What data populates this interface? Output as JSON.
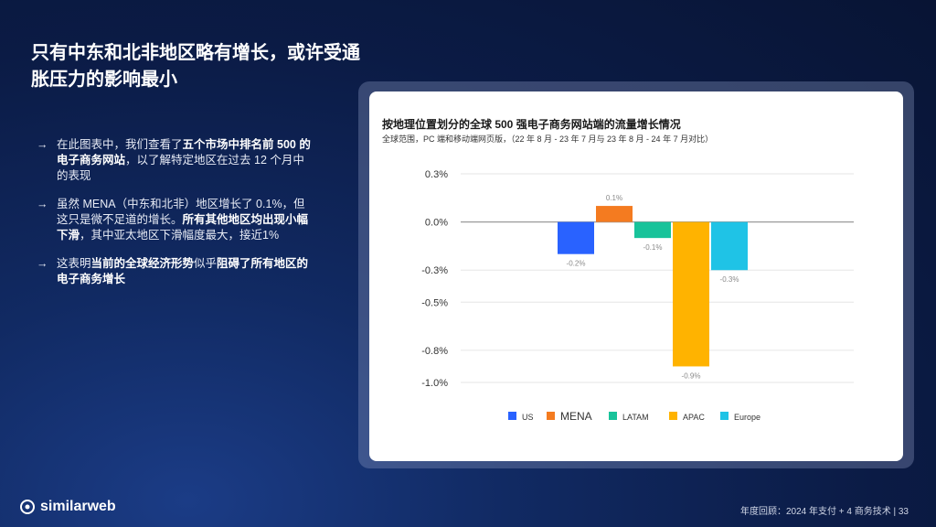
{
  "slide": {
    "title": "只有中东和北非地区略有增长，或许受通胀压力的影响最小",
    "footer_left": "similarweb",
    "footer_right": "年度回顾：2024 年支付 + 4 商务技术 | 33"
  },
  "bullets": [
    {
      "arrow": "→",
      "segments": [
        {
          "text": "在此图表中，我们查看了",
          "bold": false
        },
        {
          "text": "五个市场中排名前 500 的电子商务网站",
          "bold": true
        },
        {
          "text": "，以了解特定地区在过去 12 个月中的表现",
          "bold": false
        }
      ]
    },
    {
      "arrow": "→",
      "segments": [
        {
          "text": "虽然 MENA（中东和北非）地区增长了 0.1%，但这只是微不足道的增长。",
          "bold": false
        },
        {
          "text": "所有其他地区均出现小幅下滑",
          "bold": true
        },
        {
          "text": "，其中亚太地区下滑幅度最大，接近1%",
          "bold": false
        }
      ]
    },
    {
      "arrow": "→",
      "segments": [
        {
          "text": "这表明",
          "bold": false
        },
        {
          "text": "当前的全球经济形势",
          "bold": true
        },
        {
          "text": "似乎",
          "bold": false
        },
        {
          "text": "阻碍了所有地区的电子商务增长",
          "bold": true
        }
      ]
    }
  ],
  "chart_data": {
    "type": "bar",
    "title": "按地理位置划分的全球 500 强电子商务网站端的流量增长情况",
    "subtitle": "全球范围，PC 端和移动端网页版，（22 年 8 月 - 23 年 7 月与 23 年 8 月 - 24 年 7 月对比）",
    "categories": [
      "US",
      "MENA",
      "LATAM",
      "APAC",
      "Europe"
    ],
    "values": [
      -0.2,
      0.1,
      -0.1,
      -0.9,
      -0.3
    ],
    "value_labels": [
      "-0.2%",
      "0.1%",
      "-0.1%",
      "-0.9%",
      "-0.3%"
    ],
    "colors": [
      "#2962ff",
      "#f47b20",
      "#18c39a",
      "#ffb300",
      "#1fc3e6"
    ],
    "ylim": [
      -1.0,
      0.3
    ],
    "yticks": [
      0.3,
      0.0,
      -0.3,
      -0.5,
      -0.8,
      -1.0
    ],
    "ytick_labels": [
      "0.3%",
      "0.0%",
      "-0.3%",
      "-0.5%",
      "-0.8%",
      "-1.0%"
    ],
    "legend": [
      "US",
      "MENA",
      "LATAM",
      "APAC",
      "Europe"
    ],
    "legend_position": "bottom",
    "grid": true,
    "xlabel": "",
    "ylabel": ""
  }
}
